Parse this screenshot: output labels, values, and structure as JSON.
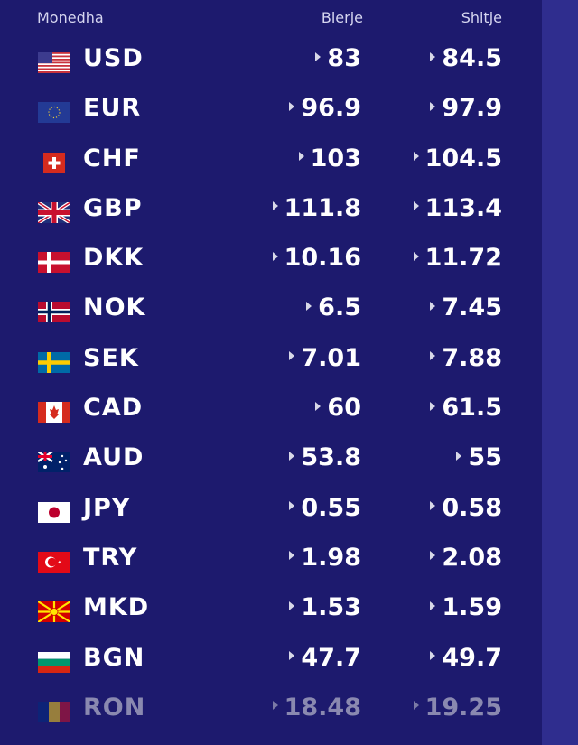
{
  "header": {
    "currency_label": "Monedha",
    "buy_label": "Blerje",
    "sell_label": "Shitje"
  },
  "colors": {
    "background": "#1d1a6e",
    "sidebar_strip": "#2f2d8e",
    "text": "#ffffff",
    "faded_text": "#8a89b0"
  },
  "rates": [
    {
      "code": "USD",
      "flag": "us-flag-icon",
      "buy": "83",
      "sell": "84.5"
    },
    {
      "code": "EUR",
      "flag": "eu-flag-icon",
      "buy": "96.9",
      "sell": "97.9"
    },
    {
      "code": "CHF",
      "flag": "ch-flag-icon",
      "buy": "103",
      "sell": "104.5"
    },
    {
      "code": "GBP",
      "flag": "gb-flag-icon",
      "buy": "111.8",
      "sell": "113.4"
    },
    {
      "code": "DKK",
      "flag": "dk-flag-icon",
      "buy": "10.16",
      "sell": "11.72"
    },
    {
      "code": "NOK",
      "flag": "no-flag-icon",
      "buy": "6.5",
      "sell": "7.45"
    },
    {
      "code": "SEK",
      "flag": "se-flag-icon",
      "buy": "7.01",
      "sell": "7.88"
    },
    {
      "code": "CAD",
      "flag": "ca-flag-icon",
      "buy": "60",
      "sell": "61.5"
    },
    {
      "code": "AUD",
      "flag": "au-flag-icon",
      "buy": "53.8",
      "sell": "55"
    },
    {
      "code": "JPY",
      "flag": "jp-flag-icon",
      "buy": "0.55",
      "sell": "0.58"
    },
    {
      "code": "TRY",
      "flag": "tr-flag-icon",
      "buy": "1.98",
      "sell": "2.08"
    },
    {
      "code": "MKD",
      "flag": "mk-flag-icon",
      "buy": "1.53",
      "sell": "1.59"
    },
    {
      "code": "BGN",
      "flag": "bg-flag-icon",
      "buy": "47.7",
      "sell": "49.7"
    },
    {
      "code": "RON",
      "flag": "ro-flag-icon",
      "buy": "18.48",
      "sell": "19.25"
    }
  ]
}
